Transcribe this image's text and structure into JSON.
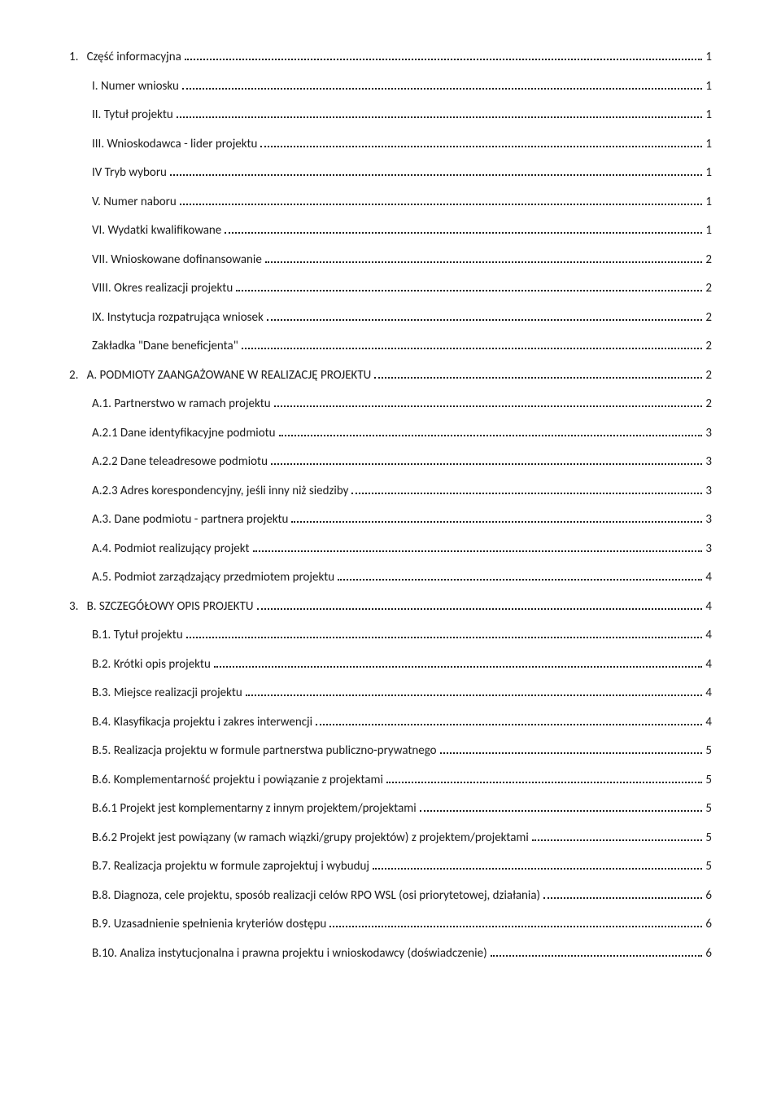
{
  "toc": [
    {
      "indent": 0,
      "label": "1.   Część informacyjna",
      "page": "1"
    },
    {
      "indent": 1,
      "label": "I. Numer wniosku",
      "page": "1"
    },
    {
      "indent": 1,
      "label": "II. Tytuł projektu",
      "page": "1"
    },
    {
      "indent": 1,
      "label": "III. Wnioskodawca - lider projektu",
      "page": "1"
    },
    {
      "indent": 1,
      "label": "IV Tryb wyboru",
      "page": "1"
    },
    {
      "indent": 1,
      "label": "V. Numer naboru",
      "page": "1"
    },
    {
      "indent": 1,
      "label": "VI. Wydatki kwalifikowane",
      "page": "1"
    },
    {
      "indent": 1,
      "label": "VII. Wnioskowane dofinansowanie",
      "page": "2"
    },
    {
      "indent": 1,
      "label": "VIII. Okres realizacji projektu",
      "page": "2"
    },
    {
      "indent": 1,
      "label": "IX. Instytucja rozpatrująca wniosek",
      "page": "2"
    },
    {
      "indent": 1,
      "label": "Zakładka \"Dane beneficjenta\"",
      "page": "2"
    },
    {
      "indent": 0,
      "label": "2.   A. PODMIOTY ZAANGAŻOWANE W REALIZACJĘ PROJEKTU",
      "page": "2"
    },
    {
      "indent": 1,
      "label": "A.1. Partnerstwo w ramach projektu",
      "page": "2"
    },
    {
      "indent": 1,
      "label": "A.2.1 Dane identyfikacyjne podmiotu",
      "page": "3"
    },
    {
      "indent": 1,
      "label": "A.2.2 Dane teleadresowe podmiotu",
      "page": "3"
    },
    {
      "indent": 1,
      "label": "A.2.3 Adres korespondencyjny, jeśli inny niż siedziby",
      "page": "3"
    },
    {
      "indent": 1,
      "label": "A.3. Dane podmiotu - partnera projektu",
      "page": "3"
    },
    {
      "indent": 1,
      "label": "A.4. Podmiot realizujący projekt",
      "page": "3"
    },
    {
      "indent": 1,
      "label": "A.5. Podmiot zarządzający przedmiotem projektu",
      "page": "4"
    },
    {
      "indent": 0,
      "label": "3.   B. SZCZEGÓŁOWY OPIS PROJEKTU",
      "page": "4"
    },
    {
      "indent": 1,
      "label": "B.1. Tytuł projektu",
      "page": "4"
    },
    {
      "indent": 1,
      "label": "B.2. Krótki opis projektu",
      "page": "4"
    },
    {
      "indent": 1,
      "label": "B.3. Miejsce realizacji projektu",
      "page": "4"
    },
    {
      "indent": 1,
      "label": "B.4. Klasyfikacja projektu i zakres interwencji",
      "page": "4"
    },
    {
      "indent": 1,
      "label": "B.5. Realizacja projektu w formule partnerstwa publiczno-prywatnego",
      "page": "5"
    },
    {
      "indent": 1,
      "label": "B.6. Komplementarność projektu i powiązanie z projektami",
      "page": "5"
    },
    {
      "indent": 1,
      "label": "B.6.1 Projekt jest komplementarny z innym projektem/projektami",
      "page": "5"
    },
    {
      "indent": 1,
      "label": "B.6.2 Projekt jest powiązany (w ramach wiązki/grupy projektów) z projektem/projektami",
      "page": "5"
    },
    {
      "indent": 1,
      "label": "B.7. Realizacja projektu w formule zaprojektuj i wybuduj",
      "page": "5"
    },
    {
      "indent": 1,
      "label": "B.8. Diagnoza, cele projektu, sposób realizacji celów RPO WSL (osi priorytetowej, działania)",
      "page": "6"
    },
    {
      "indent": 1,
      "label": "B.9. Uzasadnienie  spełnienia kryteriów dostępu",
      "page": "6"
    },
    {
      "indent": 1,
      "label": "B.10. Analiza instytucjonalna i prawna projektu i wnioskodawcy (doświadczenie)",
      "page": "6"
    }
  ]
}
